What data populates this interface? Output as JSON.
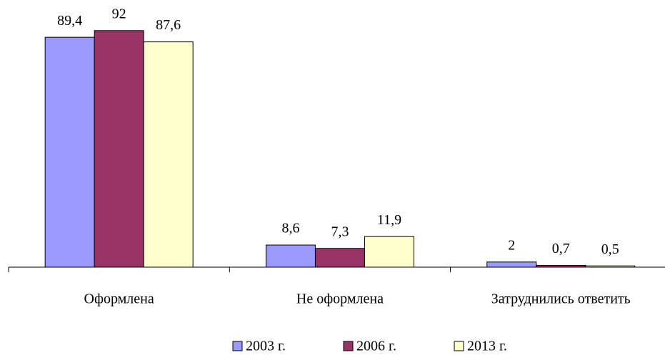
{
  "chart_data": {
    "type": "bar",
    "categories": [
      "Оформлена",
      "Не оформлена",
      "Затруднились ответить"
    ],
    "series": [
      {
        "name": "2003 г.",
        "color": "#9999ff",
        "values": [
          89.4,
          8.6,
          2
        ],
        "value_labels": [
          "89,4",
          "8,6",
          "2"
        ]
      },
      {
        "name": "2006 г.",
        "color": "#993366",
        "values": [
          92,
          7.3,
          0.7
        ],
        "value_labels": [
          "92",
          "7,3",
          "0,7"
        ]
      },
      {
        "name": "2013 г.",
        "color": "#ffffcc",
        "values": [
          87.6,
          11.9,
          0.5
        ],
        "value_labels": [
          "87,6",
          "11,9",
          "0,5"
        ]
      }
    ],
    "legend": "bottom"
  }
}
